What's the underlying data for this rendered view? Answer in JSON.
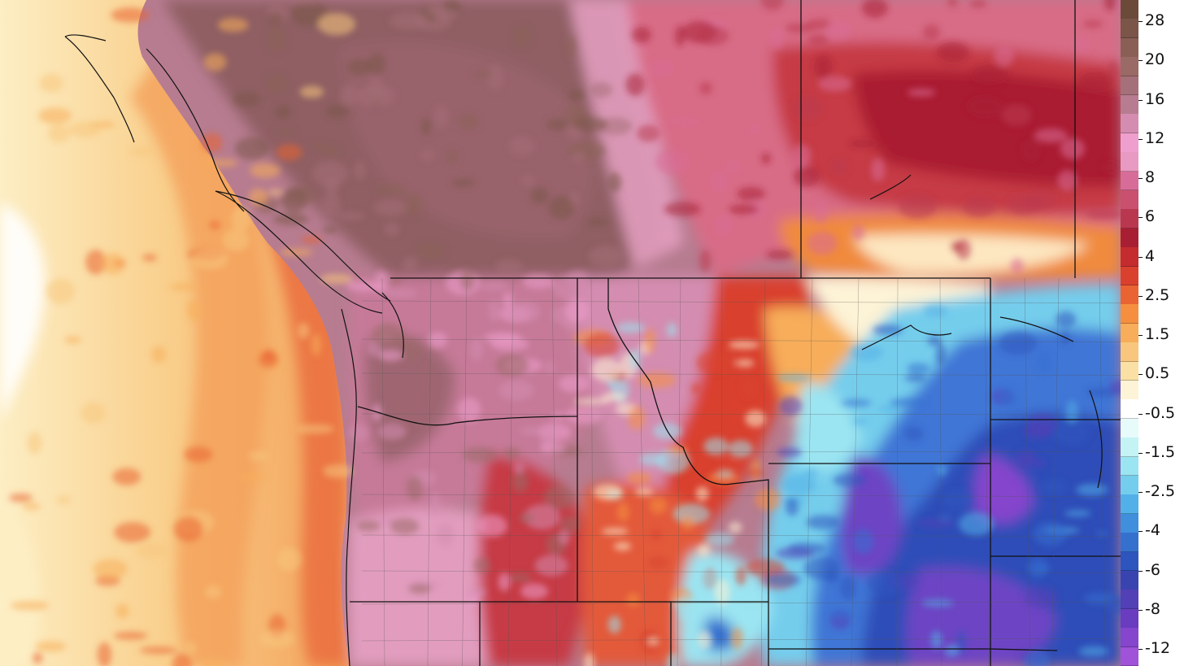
{
  "legend": {
    "labels": [
      "28",
      "20",
      "16",
      "12",
      "8",
      "6",
      "4",
      "2.5",
      "1.5",
      "0.5",
      "-0.5",
      "-1.5",
      "-2.5",
      "-4",
      "-6",
      "-8",
      "-12"
    ],
    "colors": [
      "#6b4a3a",
      "#7a5548",
      "#8a6056",
      "#9a6a66",
      "#a57079",
      "#b77c90",
      "#d48db0",
      "#ef9fcd",
      "#e99ac2",
      "#d86c98",
      "#c9506e",
      "#b9384f",
      "#a81f33",
      "#c42c30",
      "#d9412e",
      "#ea6332",
      "#f58f3f",
      "#f7ad5a",
      "#f8c77d",
      "#fae0a4",
      "#fdf3d6",
      "#ffffff",
      "#e8fbfb",
      "#c3f3f5",
      "#9be4f1",
      "#74cdec",
      "#52b0e8",
      "#3f8fdd",
      "#3570cf",
      "#2d55bd",
      "#3a44b0",
      "#5240b6",
      "#6a3cbf",
      "#8545cc",
      "#a052d8"
    ]
  },
  "map": {
    "colors": {
      "ocean_far": "#fbe6ad",
      "ocean_mid": "#f8c27b",
      "coast_warm": "#e2633d",
      "coast_hot": "#c72e33",
      "interior_brown": "#8f5e63",
      "interior_mauve": "#c67a98",
      "interior_pink": "#e7a1c3",
      "plains_red": "#c63a45",
      "plains_deep": "#aa1f31",
      "orange_band": "#f08a3c",
      "cold_light": "#8fd8ef",
      "cold_blue": "#3f76d6",
      "cold_deep": "#2f4eb8",
      "cold_purple": "#6d45c4",
      "boundary": "#111111"
    }
  }
}
